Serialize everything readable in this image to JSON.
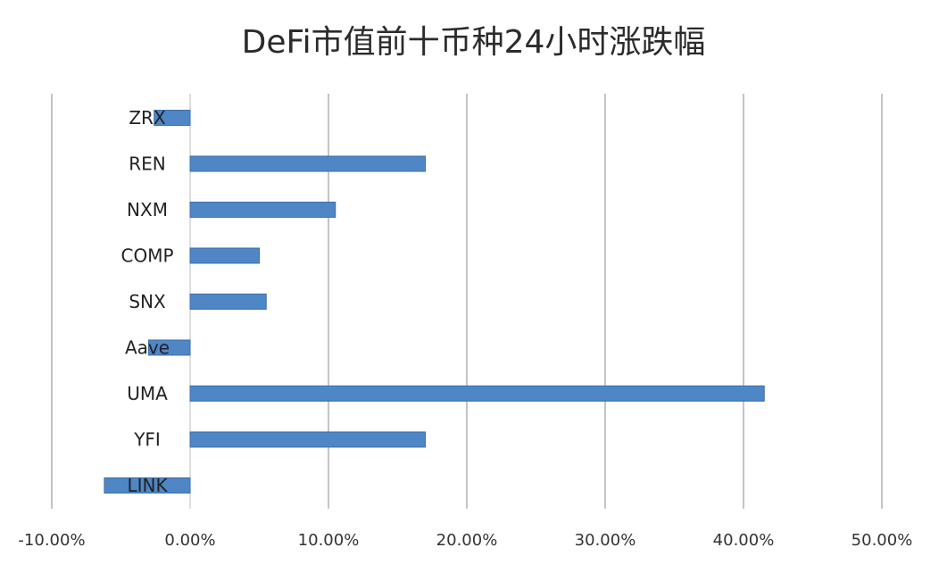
{
  "chart_data": {
    "type": "bar",
    "orientation": "horizontal",
    "title": "DeFi市值前十币种24小时涨跌幅",
    "categories": [
      "ZRX",
      "REN",
      "NXM",
      "COMP",
      "SNX",
      "Aave",
      "UMA",
      "YFI",
      "LINK"
    ],
    "values": [
      -2.6,
      17.0,
      10.5,
      5.0,
      5.5,
      -3.0,
      41.5,
      17.0,
      -6.2
    ],
    "xlim": [
      -10,
      50
    ],
    "xticks": [
      -10,
      0,
      10,
      20,
      30,
      40,
      50
    ],
    "xtick_labels": [
      "-10.00%",
      "0.00%",
      "10.00%",
      "20.00%",
      "30.00%",
      "40.00%",
      "50.00%"
    ],
    "xlabel": "",
    "ylabel": "",
    "grid": "vertical",
    "legend": "none",
    "bar_color": "#4f86c6",
    "bar_edge_color": "#3d6fa8",
    "grid_color": "#8a8a8a"
  }
}
